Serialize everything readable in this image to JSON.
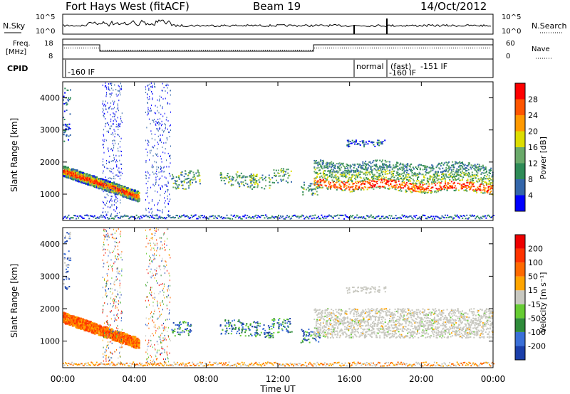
{
  "header": {
    "station": "Fort Hays West (fitACF)",
    "beam": "Beam 19",
    "date": "14/Oct/2012"
  },
  "summary": {
    "nsky_label": "N.Sky",
    "nsearch_label": "N.Search",
    "noise_ticks": [
      "10^5",
      "10^0"
    ],
    "freq_label_1": "Freq.",
    "freq_label_2": "[MHz]",
    "freq_ticks": [
      "18",
      "8"
    ],
    "nave_label": "Nave",
    "nave_ticks": [
      "60",
      "0"
    ],
    "cpid_label": "CPID",
    "cpid_annotations": [
      "-160 IF",
      "normal",
      "(fast)",
      "-151 IF",
      "-160 IF"
    ]
  },
  "colors": {
    "power": [
      "#0000ff",
      "#3366aa",
      "#2e8b57",
      "#6aaa6a",
      "#dddd00",
      "#ff9900",
      "#ff5500",
      "#ff0000"
    ],
    "velocity": [
      "#1a3faa",
      "#3a6fd8",
      "#2e8b3a",
      "#66cc33",
      "#c8c8c0",
      "#ffa500",
      "#ff6a00",
      "#ff3300",
      "#ee0000"
    ]
  },
  "chart_data": [
    {
      "type": "heatmap",
      "title": "",
      "xlabel": "",
      "ylabel": "Slant Range [km]",
      "colorbar_label": "Power [dB]",
      "colorbar_ticks": [
        "28",
        "24",
        "20",
        "16",
        "12",
        "8",
        "4"
      ],
      "xlim": [
        "00:00",
        "24:00"
      ],
      "ylim": [
        180,
        4500
      ],
      "yticks": [
        "4000",
        "3000",
        "2000",
        "1000"
      ],
      "xticks": [
        "00:00",
        "04:00",
        "08:00",
        "12:00",
        "16:00",
        "20:00",
        "00:00"
      ]
    },
    {
      "type": "heatmap",
      "title": "",
      "xlabel": "Time UT",
      "ylabel": "Slant Range [km]",
      "colorbar_label": "Velocity [m s⁻¹]",
      "colorbar_ticks": [
        "200",
        "100",
        "50",
        "15",
        "-15",
        "-50",
        "-100",
        "-200"
      ],
      "xlim": [
        "00:00",
        "24:00"
      ],
      "ylim": [
        180,
        4500
      ],
      "yticks": [
        "4000",
        "3000",
        "2000",
        "1000"
      ],
      "xticks": [
        "00:00",
        "04:00",
        "08:00",
        "12:00",
        "16:00",
        "20:00",
        "00:00"
      ]
    }
  ]
}
